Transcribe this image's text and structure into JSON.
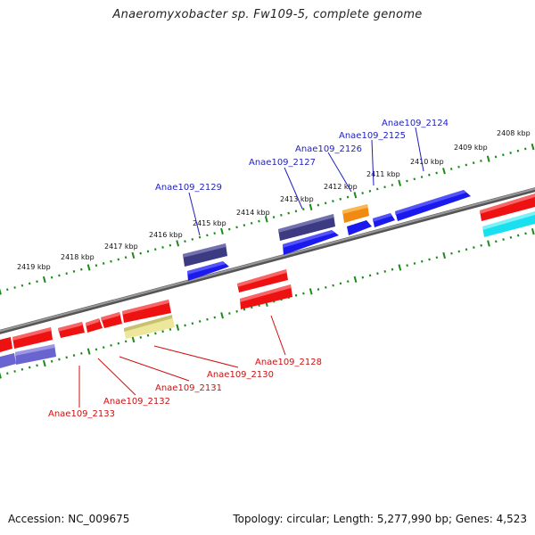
{
  "title": "Anaeromyxobacter sp. Fw109-5, complete genome",
  "footer": {
    "accession": "Accession: NC_009675",
    "topology": "Topology: circular; Length: 5,277,990 bp; Genes: 4,523"
  },
  "colors": {
    "backbone": "#888888",
    "tick": "#1a8a1a",
    "forward_label": "#1f1fbf",
    "reverse_label": "#cc1111",
    "red_gene": "#ee1111",
    "blue_gene": "#1a1aee",
    "navy_gene": "#3c3a80",
    "lavender_gene": "#6a64d0",
    "orange_gene": "#f08a10",
    "cyan_gene": "#18e0ee",
    "khaki_gene": "#ece79a"
  },
  "upper_scale": [
    "2408 kbp",
    "2409 kbp",
    "2410 kbp",
    "2411 kbp",
    "2412 kbp",
    "2413 kbp",
    "2414 kbp",
    "2415 kbp",
    "2416 kbp",
    "2417 kbp",
    "2418 kbp",
    "2419 kbp"
  ],
  "forward_labels": [
    "Anae109_2124",
    "Anae109_2125",
    "Anae109_2126",
    "Anae109_2127",
    "Anae109_2129"
  ],
  "reverse_labels": [
    "Anae109_2128",
    "Anae109_2130",
    "Anae109_2131",
    "Anae109_2132",
    "Anae109_2133"
  ]
}
